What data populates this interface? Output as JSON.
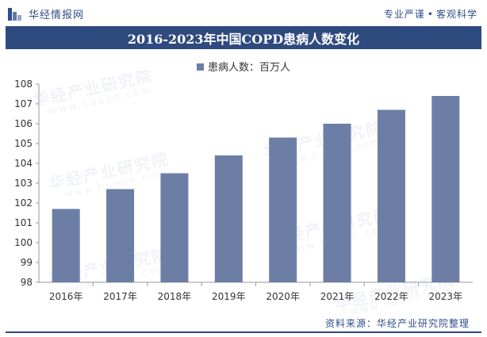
{
  "header": {
    "brand_name": "华经情报网",
    "tagline_left": "专业严谨",
    "tagline_right": "客观科学"
  },
  "footer": {
    "source": "资料来源：华经产业研究院整理"
  },
  "watermark": {
    "text": "华经产业研究院",
    "url": "www.huaon.com"
  },
  "colors": {
    "bar": "#6d7ea6",
    "title_bg": "#2f4a7e",
    "brand": "#2f4d8a"
  },
  "chart_data": {
    "type": "bar",
    "title": "2016-2023年中国COPD患病人数变化",
    "categories": [
      "2016年",
      "2017年",
      "2018年",
      "2019年",
      "2020年",
      "2021年",
      "2022年",
      "2023年"
    ],
    "series": [
      {
        "name": "患病人数：百万人",
        "values": [
          101.7,
          102.7,
          103.5,
          104.4,
          105.3,
          106.0,
          106.7,
          107.4
        ]
      }
    ],
    "xlabel": "",
    "ylabel": "",
    "ylim": [
      98,
      108
    ],
    "yticks": [
      98,
      99,
      100,
      101,
      102,
      103,
      104,
      105,
      106,
      107,
      108
    ],
    "grid": false,
    "legend": "top-center"
  }
}
